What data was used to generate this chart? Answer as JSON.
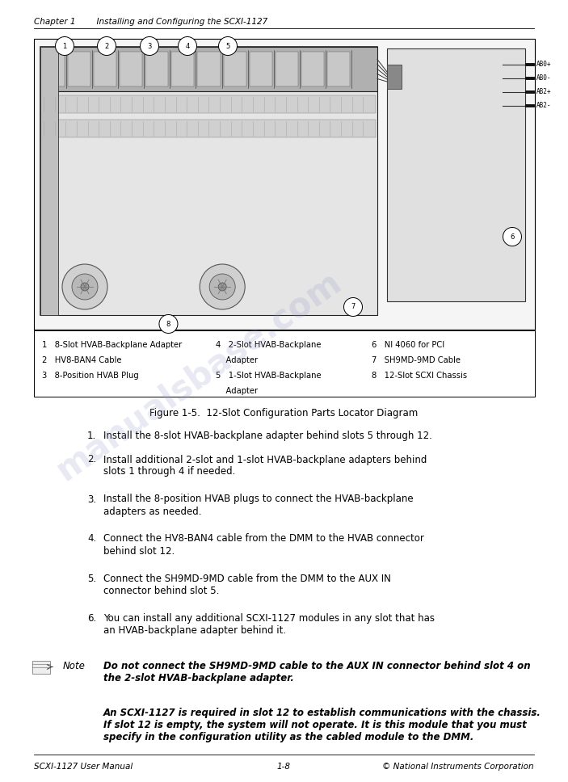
{
  "page_width": 7.03,
  "page_height": 9.68,
  "bg_color": "#ffffff",
  "header_text": "Chapter 1        Installing and Configuring the SCXI-1127",
  "footer_left": "SCXI-1127 User Manual",
  "footer_center": "1-8",
  "footer_right": "© National Instruments Corporation",
  "figure_caption": "Figure 1-5.  12-Slot Configuration Parts Locator Diagram",
  "legend_col1": [
    "1   8-Slot HVAB-Backplane Adapter",
    "2   HV8-BAN4 Cable",
    "3   8-Position HVAB Plug"
  ],
  "legend_col2_line1": "4   2-Slot HVAB-Backplane",
  "legend_col2_line2": "    Adapter",
  "legend_col2_line3": "5   1-Slot HVAB-Backplane",
  "legend_col2_line4": "    Adapter",
  "legend_col3": [
    "6   NI 4060 for PCI",
    "7   SH9MD-9MD Cable",
    "8   12-Slot SCXI Chassis"
  ],
  "steps": [
    [
      "1.",
      "Install the 8-slot HVAB-backplane adapter behind slots 5 through 12."
    ],
    [
      "2.",
      "Install additional 2-slot and 1-slot HVAB-backplane adapters behind\nslots 1 through 4 if needed."
    ],
    [
      "3.",
      "Install the 8-position HVAB plugs to connect the HVAB-backplane\nadapters as needed."
    ],
    [
      "4.",
      "Connect the HV8-BAN4 cable from the DMM to the HVAB connector\nbehind slot 12."
    ],
    [
      "5.",
      "Connect the SH9MD-9MD cable from the DMM to the AUX IN\nconnector behind slot 5."
    ],
    [
      "6.",
      "You can install any additional SCXI-1127 modules in any slot that has\nan HVAB-backplane adapter behind it."
    ]
  ],
  "note_bold": "Do not connect the SH9MD-9MD cable to the AUX IN connector behind slot 4 on\nthe 2-slot HVAB-backplane adapter.",
  "italic_note": "An SCXI-1127 is required in slot 12 to establish communications with the chassis.\nIf slot 12 is empty, the system will not operate. It is this module that you must\nspecify in the configuration utility as the cabled module to the DMM.",
  "watermark_text": "manualsbase.com",
  "connector_labels": [
    "AB0+",
    "AB0-",
    "AB2+",
    "AB2-"
  ]
}
